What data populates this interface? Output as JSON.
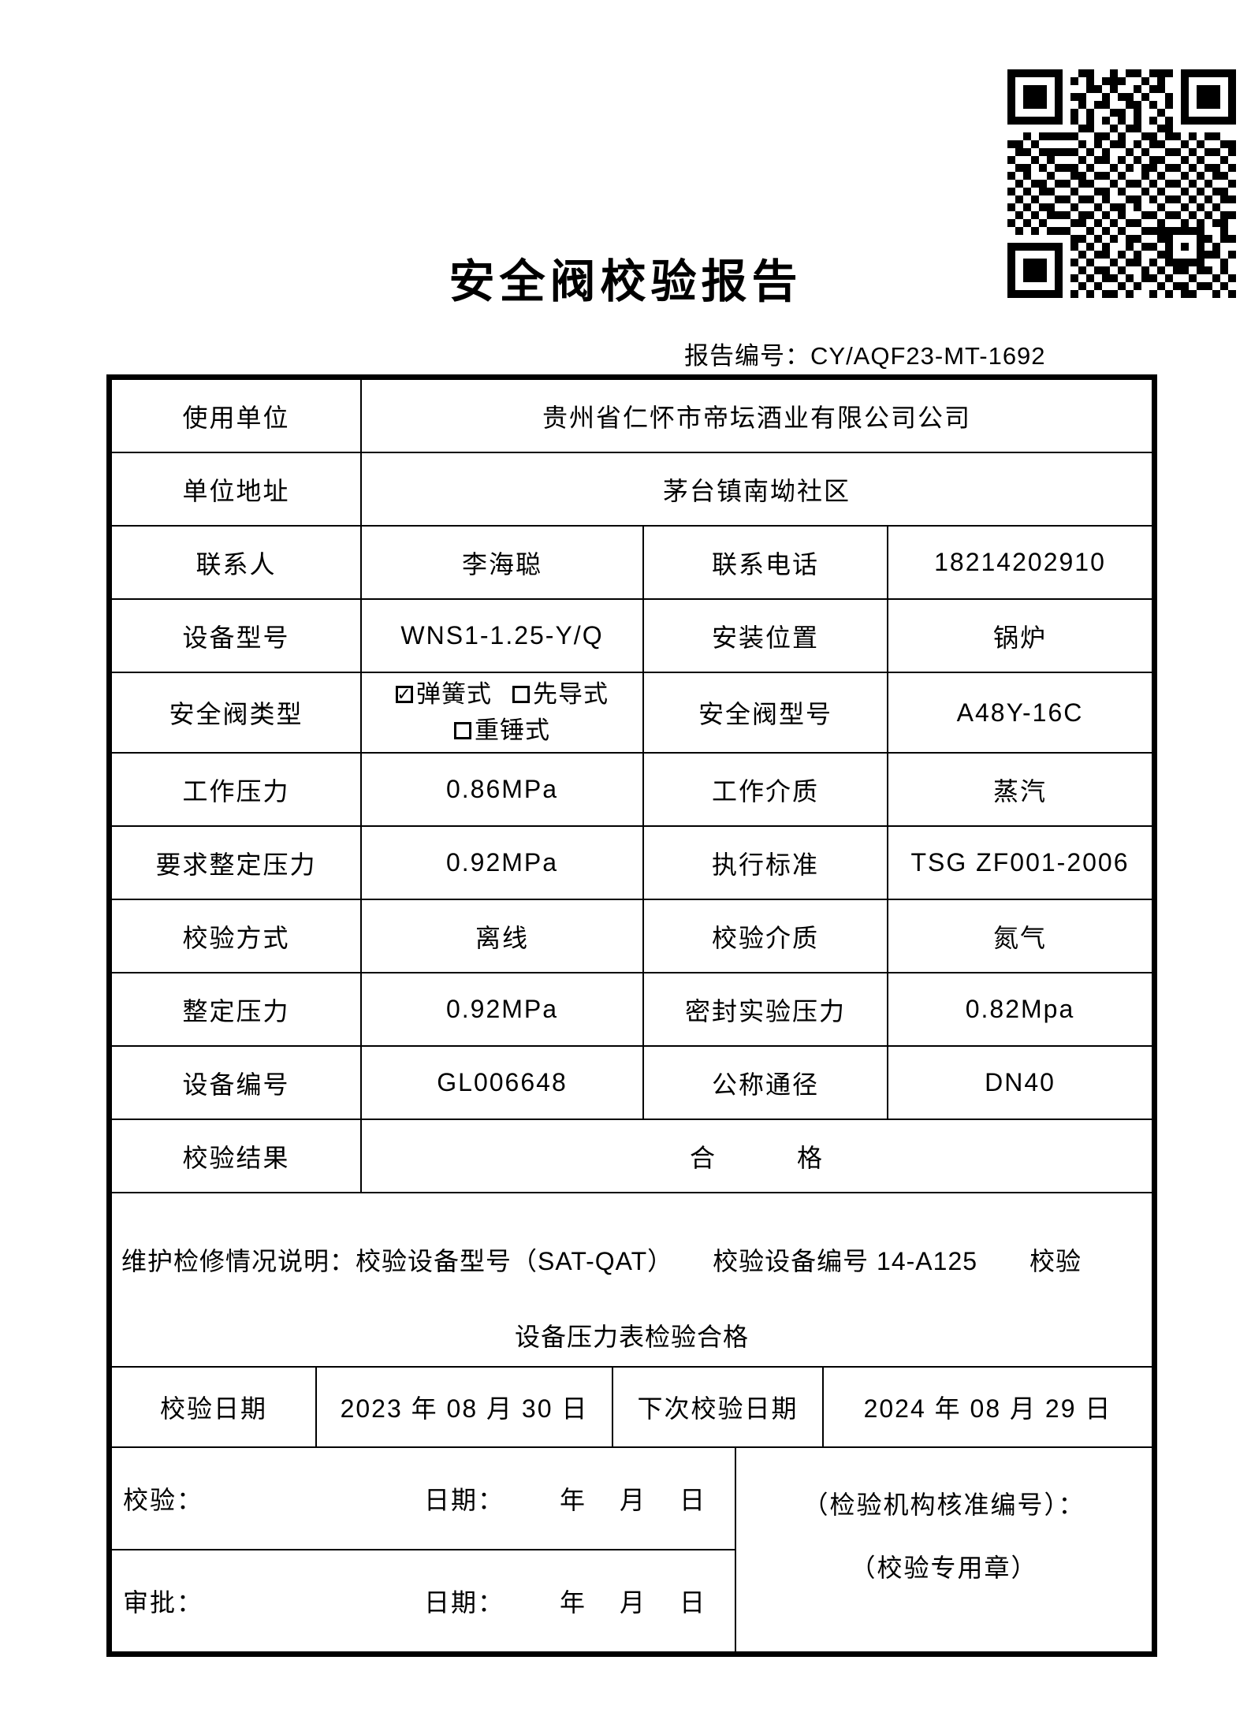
{
  "colors": {
    "ink": "#000000",
    "paper": "#ffffff",
    "page_edge": "#c9c9c9"
  },
  "header": {
    "title": "安全阀校验报告",
    "report_no_label": "报告编号：",
    "report_no": "CY/AQF23-MT-1692"
  },
  "fields": {
    "use_unit": {
      "label": "使用单位",
      "value": "贵州省仁怀市帝坛酒业有限公司公司"
    },
    "unit_address": {
      "label": "单位地址",
      "value": "茅台镇南坳社区"
    },
    "contact": {
      "label": "联系人",
      "value": "李海聪"
    },
    "contact_phone": {
      "label": "联系电话",
      "value": "18214202910"
    },
    "device_model": {
      "label": "设备型号",
      "value": "WNS1-1.25-Y/Q"
    },
    "install_location": {
      "label": "安装位置",
      "value": "锅炉"
    },
    "valve_type": {
      "label": "安全阀类型",
      "options": [
        {
          "label": "弹簧式",
          "checked": true
        },
        {
          "label": "先导式",
          "checked": false
        },
        {
          "label": "重锤式",
          "checked": false
        }
      ],
      "check_glyph": "✓"
    },
    "valve_model": {
      "label": "安全阀型号",
      "value": "A48Y-16C"
    },
    "working_pressure": {
      "label": "工作压力",
      "value": "0.86MPa"
    },
    "working_medium": {
      "label": "工作介质",
      "value": "蒸汽"
    },
    "required_set_pressure": {
      "label": "要求整定压力",
      "value": "0.92MPa"
    },
    "standard": {
      "label": "执行标准",
      "value": "TSG ZF001-2006"
    },
    "calibration_method": {
      "label": "校验方式",
      "value": "离线"
    },
    "calibration_medium": {
      "label": "校验介质",
      "value": "氮气"
    },
    "set_pressure": {
      "label": "整定压力",
      "value": "0.92MPa"
    },
    "seal_test_pressure": {
      "label": "密封实验压力",
      "value": "0.82Mpa"
    },
    "device_no": {
      "label": "设备编号",
      "value": "GL006648"
    },
    "nominal_diameter": {
      "label": "公称通径",
      "value": "DN40"
    },
    "result": {
      "label": "校验结果",
      "value": "合　　　格"
    }
  },
  "maintenance": {
    "line1": "维护检修情况说明：校验设备型号（SAT-QAT）　　校验设备编号 14-A125　　校验",
    "line2": "设备压力表检验合格"
  },
  "dates": {
    "cal_label": "校验日期",
    "cal_value": "2023 年 08 月 30 日",
    "next_label": "下次校验日期",
    "next_value": "2024 年 08 月 29 日"
  },
  "signatures": {
    "verify_label": "校验：",
    "verify_date_label": "日期：",
    "verify_date_blank": "年　月　日",
    "approve_label": "审批：",
    "approve_date_label": "日期：",
    "approve_date_blank": "年　月　日",
    "org_line1": "（检验机构核准编号）：",
    "org_line2": "（校验专用章）"
  },
  "qr": {
    "icon": "qr-code",
    "matrix": [
      "11111110011001011011101111111",
      "10000010101011100101001000001",
      "10111010001101001011001011101",
      "10111010110010110100101011101",
      "10111010010110011010101011101",
      "10000010101001101001001000001",
      "11111110101010101010101111111",
      "00000000011001011001100000000",
      "00101111100110100110110101100",
      "11010000010101101011001010011",
      "01101111101010010100110101101",
      "10010100010110101011001010010",
      "01101011101001010110110101101",
      "10100100110110100101001010110",
      "01011011011001011010110101001",
      "10101100100110100101001010110",
      "01010011011010011010110101011",
      "10101100100101101001001010100",
      "01010111011010100110110101011",
      "10101000110101011001001010110",
      "01010111001010100111111110010",
      "00000000110101011001100011011",
      "11111110101010010110101010100",
      "10000010010110101001100011101",
      "10111010101001011010111110010",
      "10111010010110100101011011010",
      "10111010101011010110100100101",
      "10000010010100101001011011010",
      "11111110101011010010101100101"
    ]
  }
}
